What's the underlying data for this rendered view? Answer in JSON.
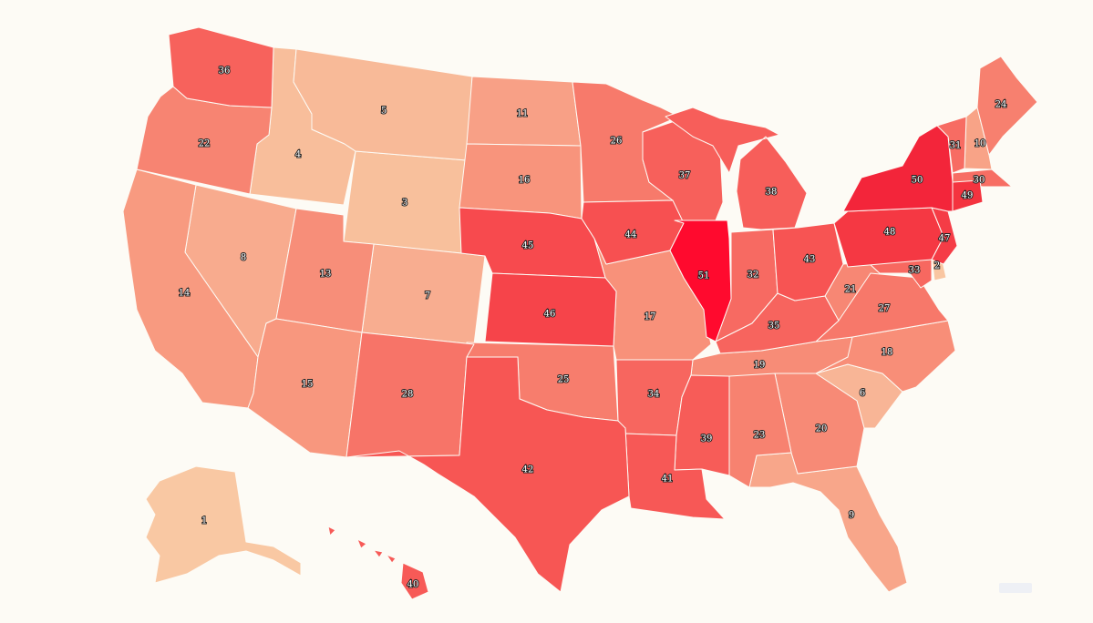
{
  "map": {
    "type": "choropleth",
    "region": "United States",
    "colors": {
      "background": "#fdfbf5",
      "border": "#fdfbf5",
      "scale_low": "#f9cba0",
      "scale_high": "#ff0a2e",
      "label_text": "#ffffff",
      "label_outline": "#222222"
    },
    "states": [
      {
        "id": "AK",
        "rank": "1",
        "fill": "#f9c8a3"
      },
      {
        "id": "DE",
        "rank": "2",
        "fill": "#f9c6a1"
      },
      {
        "id": "WY",
        "rank": "3",
        "fill": "#f8c09c"
      },
      {
        "id": "ID",
        "rank": "4",
        "fill": "#f8be9b"
      },
      {
        "id": "MT",
        "rank": "5",
        "fill": "#f8ba98"
      },
      {
        "id": "SC",
        "rank": "6",
        "fill": "#f8b596"
      },
      {
        "id": "CO",
        "rank": "7",
        "fill": "#f8ad90"
      },
      {
        "id": "NV",
        "rank": "8",
        "fill": "#f8ab8e"
      },
      {
        "id": "FL",
        "rank": "9",
        "fill": "#f8a68a"
      },
      {
        "id": "NH",
        "rank": "10",
        "fill": "#f8a387"
      },
      {
        "id": "ND",
        "rank": "11",
        "fill": "#f8a086"
      },
      {
        "id": "UT",
        "rank": "13",
        "fill": "#f78e79"
      },
      {
        "id": "CA",
        "rank": "14",
        "fill": "#f89a80"
      },
      {
        "id": "AZ",
        "rank": "15",
        "fill": "#f8977e"
      },
      {
        "id": "SD",
        "rank": "16",
        "fill": "#f8947c"
      },
      {
        "id": "MO",
        "rank": "17",
        "fill": "#f8917a"
      },
      {
        "id": "NC",
        "rank": "18",
        "fill": "#f88e78"
      },
      {
        "id": "TN",
        "rank": "19",
        "fill": "#f78c77"
      },
      {
        "id": "GA",
        "rank": "20",
        "fill": "#f78a76"
      },
      {
        "id": "WV",
        "rank": "21",
        "fill": "#f78774"
      },
      {
        "id": "OR",
        "rank": "22",
        "fill": "#f78472"
      },
      {
        "id": "AL",
        "rank": "23",
        "fill": "#f78270"
      },
      {
        "id": "ME",
        "rank": "24",
        "fill": "#f7806f"
      },
      {
        "id": "OK",
        "rank": "25",
        "fill": "#f77d6d"
      },
      {
        "id": "MN",
        "rank": "26",
        "fill": "#f77a6b"
      },
      {
        "id": "VA",
        "rank": "27",
        "fill": "#f7786a"
      },
      {
        "id": "NM",
        "rank": "28",
        "fill": "#f77468"
      },
      {
        "id": "MA",
        "rank": "30",
        "fill": "#f76e64"
      },
      {
        "id": "VT",
        "rank": "31",
        "fill": "#f76c63"
      },
      {
        "id": "IN",
        "rank": "32",
        "fill": "#f76a62"
      },
      {
        "id": "MD",
        "rank": "33",
        "fill": "#f76860"
      },
      {
        "id": "AR",
        "rank": "34",
        "fill": "#f7665f"
      },
      {
        "id": "KY",
        "rank": "35",
        "fill": "#f7645e"
      },
      {
        "id": "WA",
        "rank": "36",
        "fill": "#f7625c"
      },
      {
        "id": "WI",
        "rank": "37",
        "fill": "#f7605b"
      },
      {
        "id": "MI",
        "rank": "38",
        "fill": "#f75e5a"
      },
      {
        "id": "MS",
        "rank": "39",
        "fill": "#f75c58"
      },
      {
        "id": "HI",
        "rank": "40",
        "fill": "#f75a57"
      },
      {
        "id": "LA",
        "rank": "41",
        "fill": "#f75856"
      },
      {
        "id": "TX",
        "rank": "42",
        "fill": "#f75654"
      },
      {
        "id": "OH",
        "rank": "43",
        "fill": "#f75453"
      },
      {
        "id": "IA",
        "rank": "44",
        "fill": "#f75051"
      },
      {
        "id": "NE",
        "rank": "45",
        "fill": "#f74a4e"
      },
      {
        "id": "KS",
        "rank": "46",
        "fill": "#f6444a"
      },
      {
        "id": "NJ",
        "rank": "47",
        "fill": "#f53c46"
      },
      {
        "id": "PA",
        "rank": "48",
        "fill": "#f53843"
      },
      {
        "id": "CT",
        "rank": "49",
        "fill": "#f4333f"
      },
      {
        "id": "NY",
        "rank": "50",
        "fill": "#f3253a"
      },
      {
        "id": "IL",
        "rank": "51",
        "fill": "#ff0a2e"
      }
    ]
  }
}
